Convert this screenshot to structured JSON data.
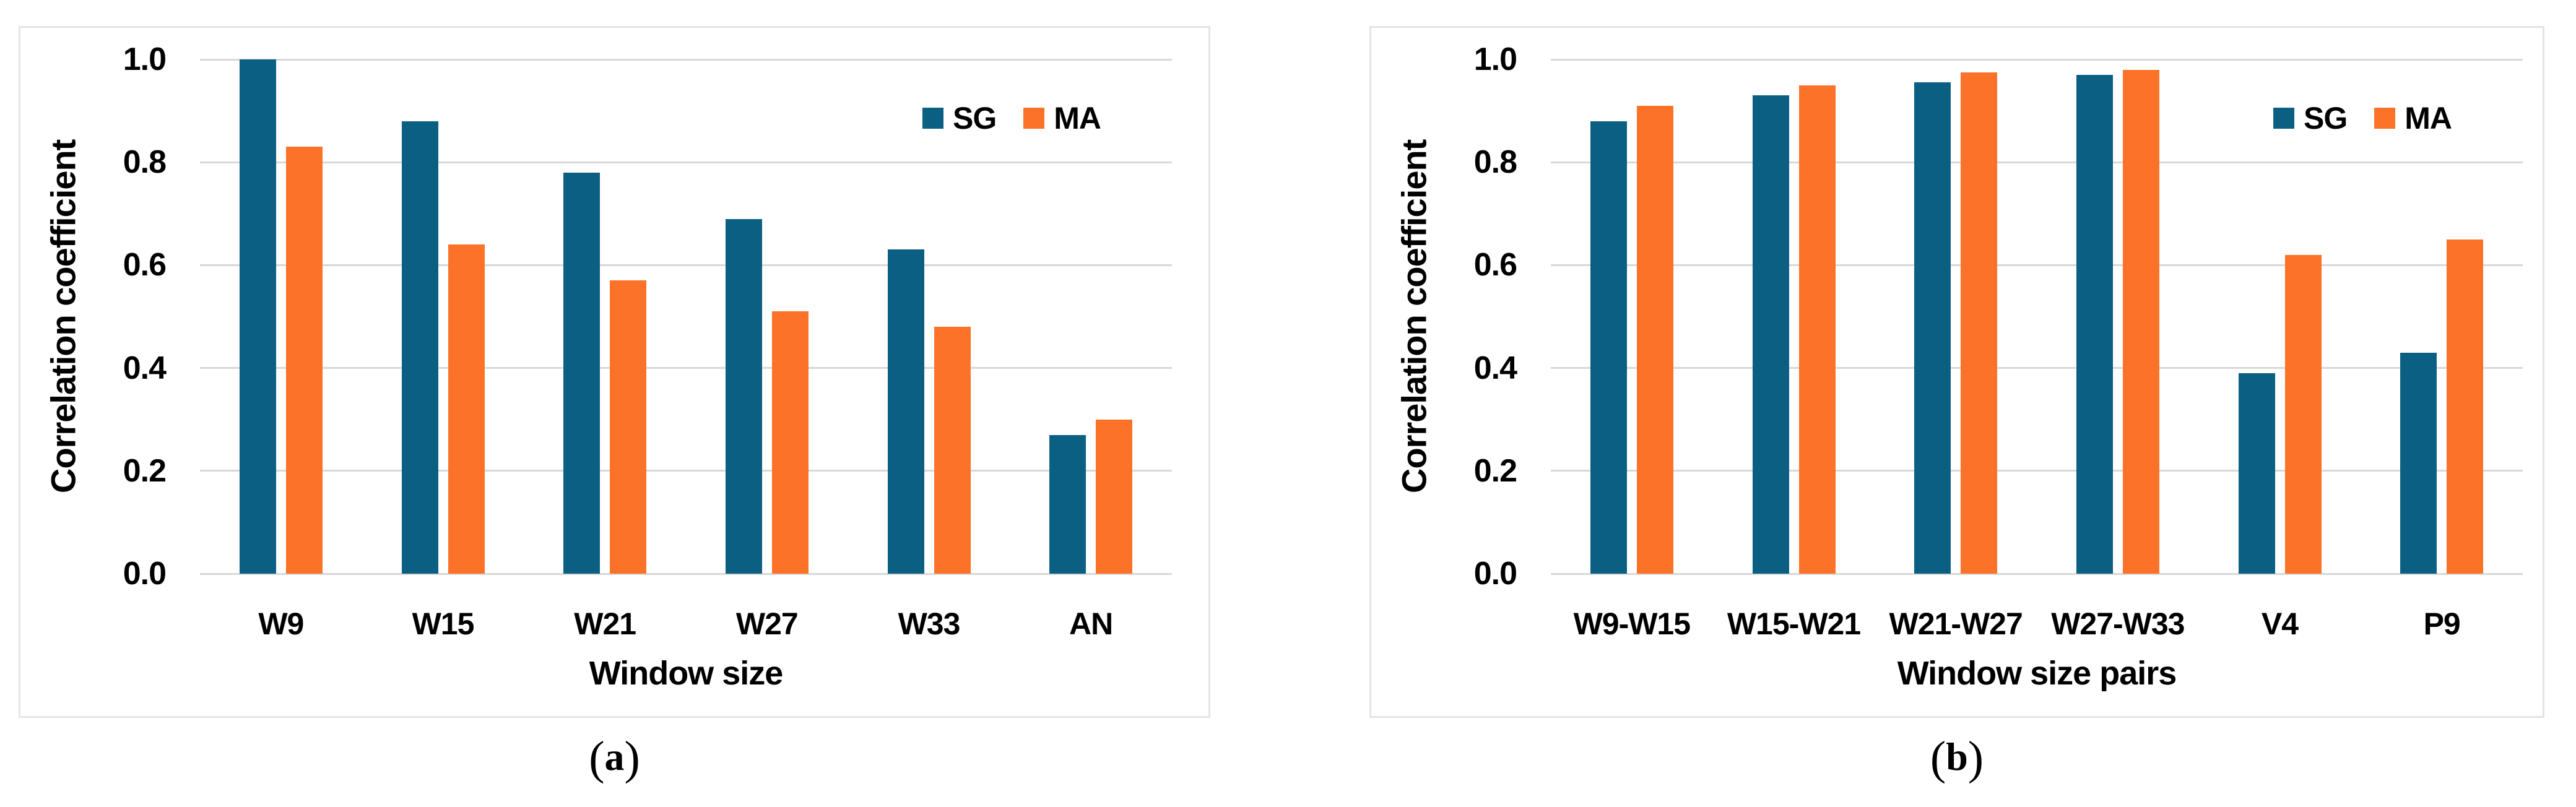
{
  "colors": {
    "sg": "#0A5F83",
    "ma": "#FB7228",
    "gridline": "#D8D8D8",
    "panel_border": "#E4E4E4",
    "text": "#000000"
  },
  "captions": {
    "a": {
      "open": "(",
      "letter": "a",
      "close": ")"
    },
    "b": {
      "open": "(",
      "letter": "b",
      "close": ")"
    }
  },
  "chart_data": [
    {
      "id": "a",
      "type": "bar",
      "title": "",
      "ylabel": "Correlation coefficient",
      "xlabel": "Window size",
      "ylim": [
        0.0,
        1.0
      ],
      "yticks": [
        1.0,
        0.8,
        0.6,
        0.4,
        0.2,
        0.0
      ],
      "ytick_labels": [
        "1.0",
        "0.8",
        "0.6",
        "0.4",
        "0.2",
        "0.0"
      ],
      "grid": true,
      "legend_position": "top-right-inside",
      "legend_entries": [
        "SG",
        "MA"
      ],
      "categories": [
        "W9",
        "W15",
        "W21",
        "W27",
        "W33",
        "AN"
      ],
      "series": [
        {
          "name": "SG",
          "color_key": "sg",
          "values": [
            1.0,
            0.88,
            0.78,
            0.69,
            0.63,
            0.27
          ]
        },
        {
          "name": "MA",
          "color_key": "ma",
          "values": [
            0.83,
            0.64,
            0.57,
            0.51,
            0.48,
            0.3
          ]
        }
      ]
    },
    {
      "id": "b",
      "type": "bar",
      "title": "",
      "ylabel": "Correlation coefficient",
      "xlabel": "Window size pairs",
      "ylim": [
        0.0,
        1.0
      ],
      "yticks": [
        1.0,
        0.8,
        0.6,
        0.4,
        0.2,
        0.0
      ],
      "ytick_labels": [
        "1.0",
        "0.8",
        "0.6",
        "0.4",
        "0.2",
        "0.0"
      ],
      "grid": true,
      "legend_position": "top-right-inside",
      "legend_entries": [
        "SG",
        "MA"
      ],
      "categories": [
        "W9-W15",
        "W15-W21",
        "W21-W27",
        "W27-W33",
        "V4",
        "P9"
      ],
      "series": [
        {
          "name": "SG",
          "color_key": "sg",
          "values": [
            0.88,
            0.93,
            0.955,
            0.97,
            0.39,
            0.43
          ]
        },
        {
          "name": "MA",
          "color_key": "ma",
          "values": [
            0.91,
            0.95,
            0.975,
            0.98,
            0.62,
            0.65
          ]
        }
      ]
    }
  ]
}
